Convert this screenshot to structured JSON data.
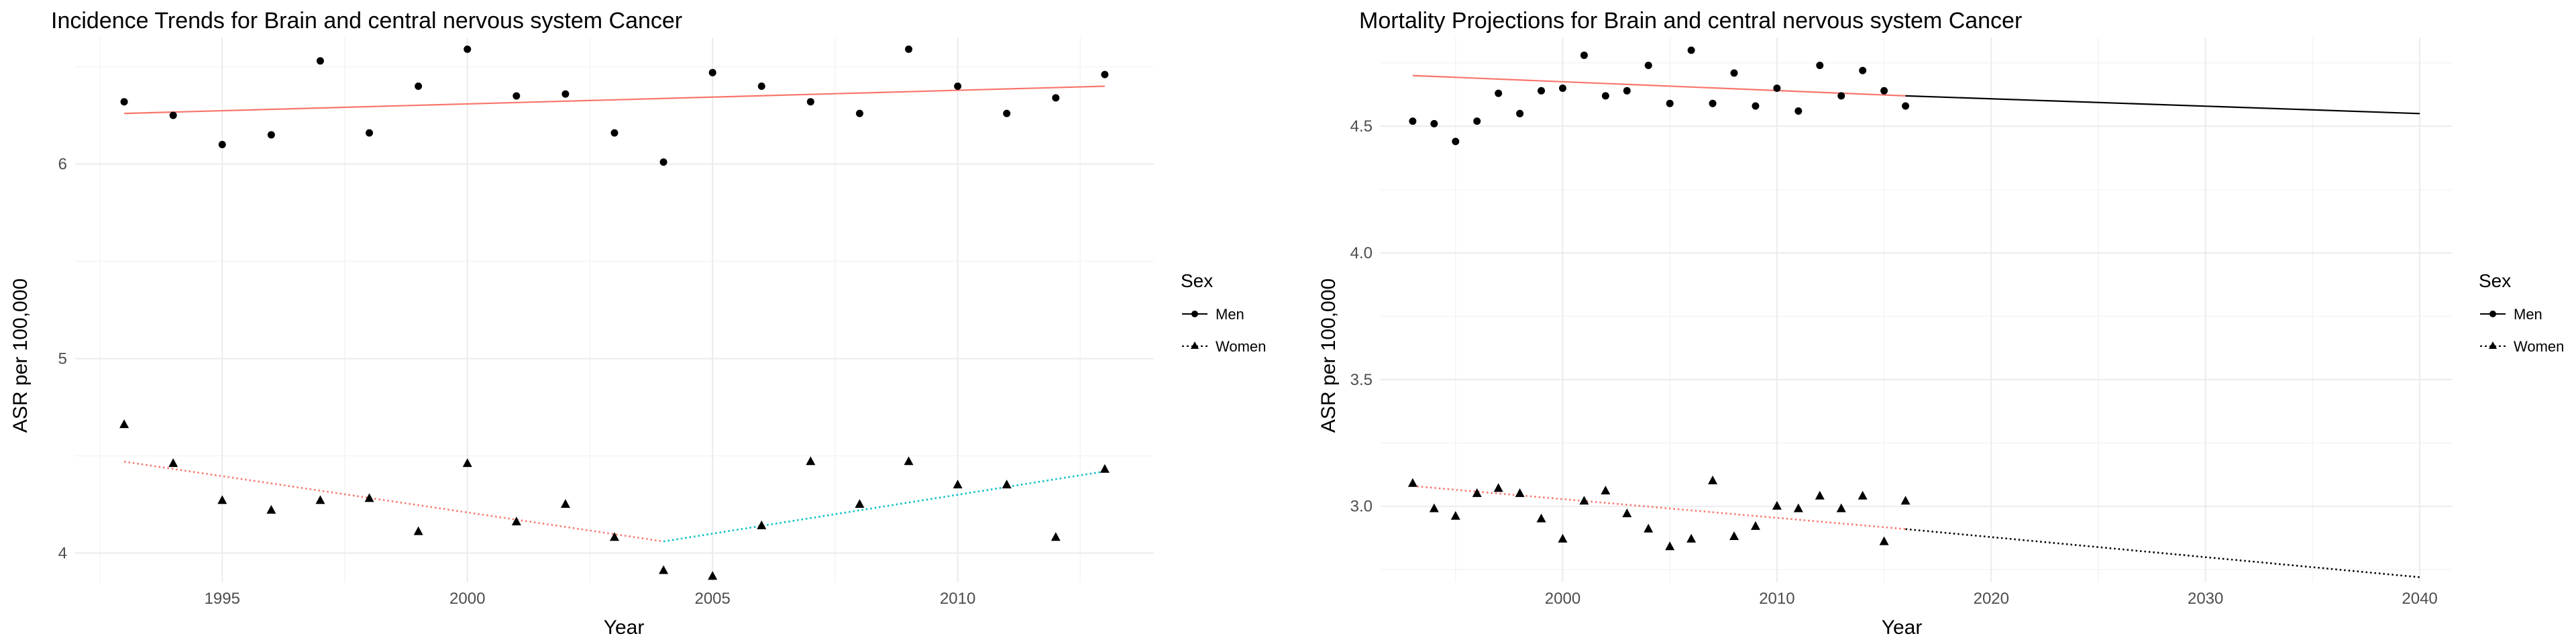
{
  "chart_data": [
    {
      "type": "scatter",
      "title": "Incidence Trends for Brain and central nervous system Cancer",
      "xlabel": "Year",
      "ylabel": "ASR per 100,000",
      "xlim": [
        1992,
        2014
      ],
      "ylim": [
        3.85,
        6.65
      ],
      "x_ticks": [
        1995,
        2000,
        2005,
        2010
      ],
      "y_ticks": [
        4,
        5,
        6
      ],
      "grid": true,
      "legend": {
        "title": "Sex",
        "position": "right",
        "entries": [
          "Men",
          "Women"
        ]
      },
      "series": [
        {
          "name": "Men",
          "marker": "circle",
          "x": [
            1993,
            1994,
            1995,
            1996,
            1997,
            1998,
            1999,
            2000,
            2001,
            2002,
            2003,
            2004,
            2005,
            2006,
            2007,
            2008,
            2009,
            2010,
            2011,
            2012,
            2013
          ],
          "y": [
            6.32,
            6.25,
            6.1,
            6.15,
            6.53,
            6.16,
            6.4,
            6.59,
            6.35,
            6.36,
            6.16,
            6.01,
            6.47,
            6.4,
            6.32,
            6.26,
            6.59,
            6.4,
            6.26,
            6.34,
            6.46
          ],
          "trend": [
            {
              "x": [
                1993,
                2013
              ],
              "y": [
                6.26,
                6.4
              ],
              "color": "#f8766d",
              "style": "solid"
            }
          ]
        },
        {
          "name": "Women",
          "marker": "triangle",
          "x": [
            1993,
            1994,
            1995,
            1996,
            1997,
            1998,
            1999,
            2000,
            2001,
            2002,
            2003,
            2004,
            2005,
            2006,
            2007,
            2008,
            2009,
            2010,
            2011,
            2012,
            2013
          ],
          "y": [
            4.66,
            4.46,
            4.27,
            4.22,
            4.27,
            4.28,
            4.11,
            4.46,
            4.16,
            4.25,
            4.08,
            3.91,
            3.88,
            4.14,
            4.47,
            4.25,
            4.47,
            4.35,
            4.35,
            4.08,
            4.43
          ],
          "trend": [
            {
              "x": [
                1993,
                2004
              ],
              "y": [
                4.47,
                4.06
              ],
              "color": "#f8766d",
              "style": "dotted"
            },
            {
              "x": [
                2004,
                2013
              ],
              "y": [
                4.06,
                4.42
              ],
              "color": "#00bfc4",
              "style": "dotted"
            }
          ]
        }
      ]
    },
    {
      "type": "scatter",
      "title": "Mortality Projections for Brain and central nervous system Cancer",
      "xlabel": "Year",
      "ylabel": "ASR per 100,000",
      "xlim": [
        1991.5,
        2041.5
      ],
      "ylim": [
        2.7,
        4.85
      ],
      "x_ticks": [
        2000,
        2010,
        2020,
        2030,
        2040
      ],
      "y_ticks": [
        3.0,
        3.5,
        4.0,
        4.5
      ],
      "y_tick_labels": [
        "3.0",
        "3.5",
        "4.0",
        "4.5"
      ],
      "grid": true,
      "legend": {
        "title": "Sex",
        "position": "right",
        "entries": [
          "Men",
          "Women"
        ]
      },
      "series": [
        {
          "name": "Men",
          "marker": "circle",
          "x": [
            1993,
            1994,
            1995,
            1996,
            1997,
            1998,
            1999,
            2000,
            2001,
            2002,
            2003,
            2004,
            2005,
            2006,
            2007,
            2008,
            2009,
            2010,
            2011,
            2012,
            2013,
            2014,
            2015,
            2016
          ],
          "y": [
            4.52,
            4.51,
            4.44,
            4.52,
            4.63,
            4.55,
            4.64,
            4.65,
            4.78,
            4.62,
            4.64,
            4.74,
            4.59,
            4.8,
            4.59,
            4.71,
            4.58,
            4.65,
            4.56,
            4.74,
            4.62,
            4.72,
            4.64,
            4.58
          ],
          "trend": [
            {
              "x": [
                1993,
                2016
              ],
              "y": [
                4.7,
                4.62
              ],
              "color": "#f8766d",
              "style": "solid"
            },
            {
              "x": [
                2016,
                2040
              ],
              "y": [
                4.62,
                4.55
              ],
              "color": "#000000",
              "style": "solid"
            }
          ]
        },
        {
          "name": "Women",
          "marker": "triangle",
          "x": [
            1993,
            1994,
            1995,
            1996,
            1997,
            1998,
            1999,
            2000,
            2001,
            2002,
            2003,
            2004,
            2005,
            2006,
            2007,
            2008,
            2009,
            2010,
            2011,
            2012,
            2013,
            2014,
            2015,
            2016
          ],
          "y": [
            3.09,
            2.99,
            2.96,
            3.05,
            3.07,
            3.05,
            2.95,
            2.87,
            3.02,
            3.06,
            2.97,
            2.91,
            2.84,
            2.87,
            3.1,
            2.88,
            2.92,
            3.0,
            2.99,
            3.04,
            2.99,
            3.04,
            2.86,
            3.02
          ],
          "trend": [
            {
              "x": [
                1993,
                2016
              ],
              "y": [
                3.08,
                2.91
              ],
              "color": "#f8766d",
              "style": "dotted"
            },
            {
              "x": [
                2016,
                2040
              ],
              "y": [
                2.91,
                2.72
              ],
              "color": "#000000",
              "style": "dotted"
            }
          ]
        }
      ]
    }
  ]
}
